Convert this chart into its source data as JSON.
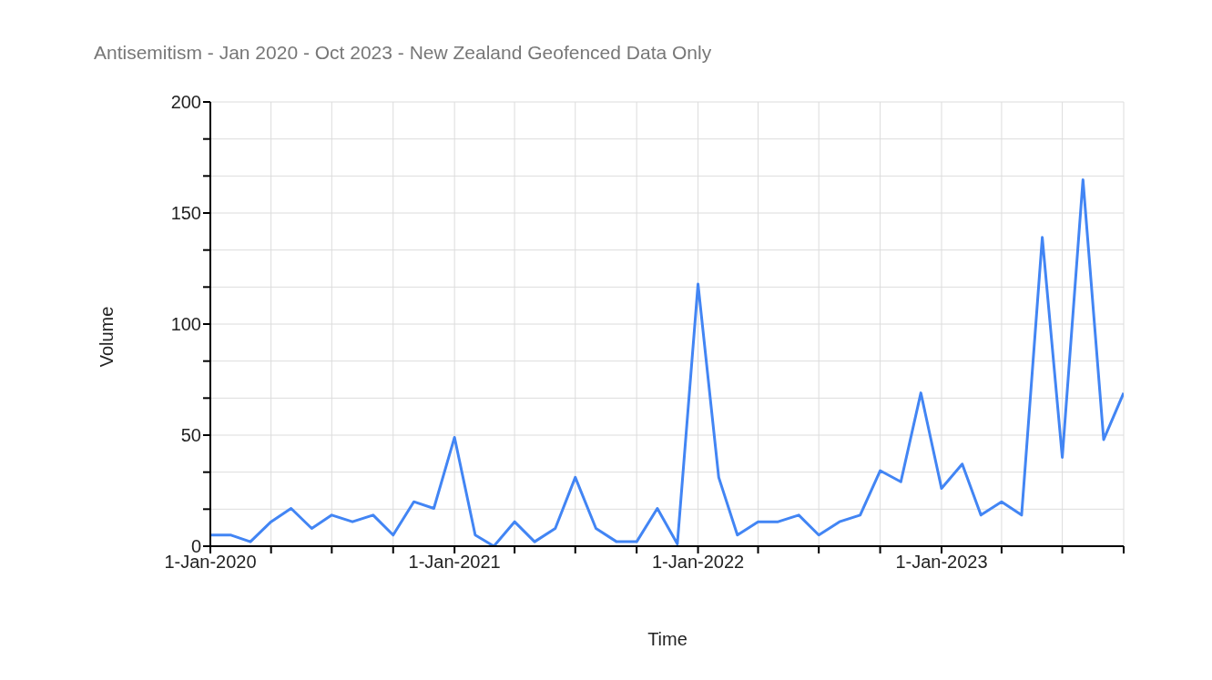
{
  "chart_data": {
    "type": "line",
    "title": "Antisemitism - Jan 2020 - Oct 2023 - New Zealand Geofenced Data Only",
    "xlabel": "Time",
    "ylabel": "Volume",
    "x": [
      "2020-01",
      "2020-02",
      "2020-03",
      "2020-04",
      "2020-05",
      "2020-06",
      "2020-07",
      "2020-08",
      "2020-09",
      "2020-10",
      "2020-11",
      "2020-12",
      "2021-01",
      "2021-02",
      "2021-03",
      "2021-04",
      "2021-05",
      "2021-06",
      "2021-07",
      "2021-08",
      "2021-09",
      "2021-10",
      "2021-11",
      "2021-12",
      "2022-01",
      "2022-02",
      "2022-03",
      "2022-04",
      "2022-05",
      "2022-06",
      "2022-07",
      "2022-08",
      "2022-09",
      "2022-10",
      "2022-11",
      "2022-12",
      "2023-01",
      "2023-02",
      "2023-03",
      "2023-04",
      "2023-05",
      "2023-06",
      "2023-07",
      "2023-08",
      "2023-09",
      "2023-10"
    ],
    "series": [
      {
        "color": "#4285f4",
        "values": [
          5,
          5,
          2,
          11,
          17,
          8,
          14,
          11,
          14,
          5,
          20,
          17,
          49,
          5,
          0,
          11,
          2,
          8,
          31,
          8,
          2,
          2,
          17,
          1,
          118,
          31,
          5,
          11,
          11,
          14,
          5,
          11,
          14,
          34,
          29,
          69,
          26,
          37,
          14,
          20,
          14,
          139,
          40,
          165,
          48,
          69
        ]
      }
    ],
    "xlim": [
      "2020-01",
      "2023-10"
    ],
    "xticks": [
      {
        "value": "2020-01",
        "label": "1-Jan-2020"
      },
      {
        "value": "2020-04",
        "label": null
      },
      {
        "value": "2020-07",
        "label": null
      },
      {
        "value": "2020-10",
        "label": null
      },
      {
        "value": "2021-01",
        "label": "1-Jan-2021"
      },
      {
        "value": "2021-04",
        "label": null
      },
      {
        "value": "2021-07",
        "label": null
      },
      {
        "value": "2021-10",
        "label": null
      },
      {
        "value": "2022-01",
        "label": "1-Jan-2022"
      },
      {
        "value": "2022-04",
        "label": null
      },
      {
        "value": "2022-07",
        "label": null
      },
      {
        "value": "2022-10",
        "label": null
      },
      {
        "value": "2023-01",
        "label": "1-Jan-2023"
      },
      {
        "value": "2023-04",
        "label": null
      },
      {
        "value": "2023-07",
        "label": null
      },
      {
        "value": "2023-10",
        "label": null
      }
    ],
    "ylim": [
      0,
      200
    ],
    "yticks": [
      0,
      {
        "value": 16.667,
        "label": null
      },
      {
        "value": 33.333,
        "label": null
      },
      50,
      {
        "value": 66.667,
        "label": null
      },
      {
        "value": 83.333,
        "label": null
      },
      100,
      {
        "value": 116.667,
        "label": null
      },
      {
        "value": 133.333,
        "label": null
      },
      150,
      {
        "value": 166.667,
        "label": null
      },
      {
        "value": 183.333,
        "label": null
      },
      200
    ],
    "grid": true,
    "line_style": "solid",
    "marker": "none",
    "legend": false
  }
}
